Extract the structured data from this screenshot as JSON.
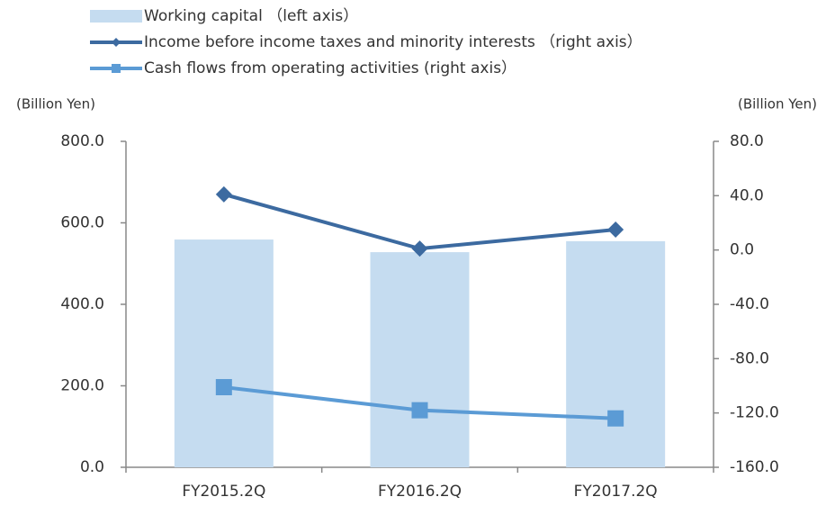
{
  "chart_data": {
    "type": "combo",
    "y_label": "(Billion Yen)",
    "y2_label": "(Billion Yen)",
    "categories": [
      "FY2015.2Q",
      "FY2016.2Q",
      "FY2017.2Q"
    ],
    "series": [
      {
        "name": "Working capital （left axis）",
        "type": "bar",
        "color": "#c5dcf0",
        "values": [
          559,
          528,
          555
        ]
      },
      {
        "name": "Income before income taxes and minority interests （right axis）",
        "type": "line",
        "marker": "diamond",
        "axis": "y2",
        "color": "#3c6aa0",
        "values": [
          41,
          1,
          15
        ]
      },
      {
        "name": "Cash flows from operating activities (right axis）",
        "type": "line",
        "marker": "square",
        "axis": "y2",
        "color": "#5b9bd5",
        "values": [
          -101,
          -118,
          -124
        ]
      }
    ],
    "ylim": [
      0,
      800
    ],
    "yticks": [
      {
        "value": 0,
        "label": "0.0"
      },
      {
        "value": 200,
        "label": "200.0"
      },
      {
        "value": 400,
        "label": "400.0"
      },
      {
        "value": 600,
        "label": "600.0"
      },
      {
        "value": 800,
        "label": "800.0"
      }
    ],
    "y2lim": [
      -160,
      80
    ],
    "y2ticks": [
      {
        "value": -160,
        "label": "-160.0"
      },
      {
        "value": -120,
        "label": "-120.0"
      },
      {
        "value": -80,
        "label": "-80.0"
      },
      {
        "value": -40,
        "label": "-40.0"
      },
      {
        "value": 0,
        "label": "0.0"
      },
      {
        "value": 40,
        "label": "40.0"
      },
      {
        "value": 80,
        "label": "80.0"
      }
    ],
    "grid": false,
    "legend": "top"
  }
}
